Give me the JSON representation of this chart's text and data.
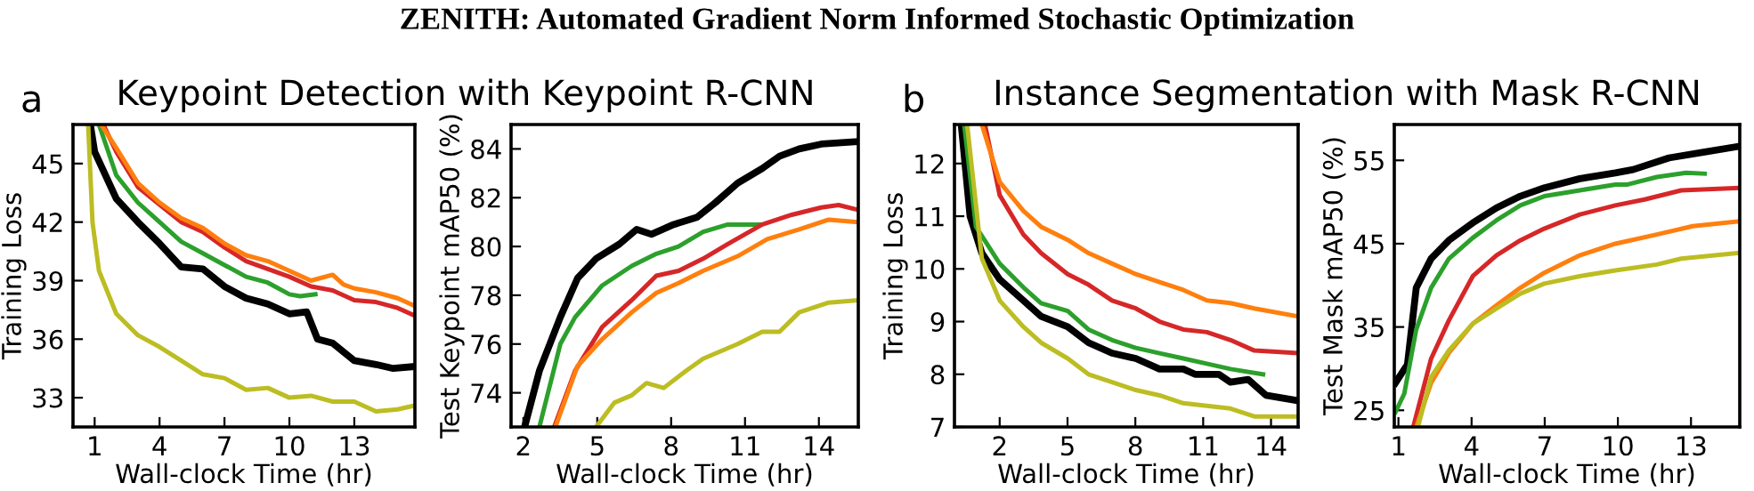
{
  "chart_data": [
    {
      "type": "line",
      "title": "Keypoint Detection with Keypoint R-CNN",
      "xlabel": "Wall-clock Time (hr)",
      "ylabel": "Training Loss",
      "annotations": [
        "ZENITH: Automated Gradient Norm Informed Stochastic Optimization",
        "a"
      ],
      "xlim": [
        0,
        15.8
      ],
      "ylim": [
        31.5,
        47
      ],
      "xticks": [
        1,
        4,
        7,
        10,
        13
      ],
      "yticks": [
        33,
        36,
        39,
        42,
        45
      ],
      "grid": false,
      "legend": false,
      "series": [
        {
          "color": "#000000",
          "x": [
            0.8,
            1,
            2,
            3,
            4,
            5,
            6,
            7,
            8,
            9,
            10,
            10.8,
            11.3,
            12,
            13,
            14,
            14.8,
            15.8
          ],
          "values": [
            47,
            45.6,
            43.2,
            42.0,
            40.9,
            39.7,
            39.6,
            38.7,
            38.1,
            37.8,
            37.3,
            37.4,
            36.0,
            35.8,
            34.9,
            34.7,
            34.5,
            34.6
          ]
        },
        {
          "color": "#2ca02c",
          "x": [
            1.2,
            2,
            3,
            4,
            5,
            6,
            7,
            8,
            9,
            10,
            10.5,
            11.2
          ],
          "values": [
            47,
            44.4,
            43.0,
            42.0,
            41.0,
            40.4,
            39.8,
            39.2,
            38.9,
            38.3,
            38.2,
            38.3
          ]
        },
        {
          "color": "#d62728",
          "x": [
            1.4,
            2,
            3,
            4,
            5,
            6,
            7,
            8,
            9,
            10,
            11,
            12,
            13,
            14,
            15,
            15.8
          ],
          "values": [
            47,
            45.6,
            43.8,
            42.9,
            42.0,
            41.5,
            40.7,
            40.0,
            39.6,
            39.2,
            38.7,
            38.5,
            38.0,
            37.9,
            37.6,
            37.2
          ]
        },
        {
          "color": "#ff7f0e",
          "x": [
            1.3,
            2,
            3,
            4,
            5,
            6,
            7,
            8,
            9,
            10,
            11,
            12,
            12.5,
            13,
            14,
            15,
            15.8
          ],
          "values": [
            47,
            45.8,
            44.0,
            43.0,
            42.2,
            41.7,
            40.9,
            40.3,
            40.0,
            39.5,
            39.0,
            39.3,
            38.8,
            38.6,
            38.4,
            38.1,
            37.7
          ]
        },
        {
          "color": "#bcbd22",
          "x": [
            0.7,
            0.9,
            1.2,
            2,
            3,
            4,
            5,
            6,
            7,
            8,
            9,
            10,
            11,
            12,
            13,
            14,
            15,
            15.8
          ],
          "values": [
            47,
            42,
            39.5,
            37.3,
            36.2,
            35.6,
            34.9,
            34.2,
            34.0,
            33.4,
            33.5,
            33.0,
            33.1,
            32.8,
            32.8,
            32.3,
            32.4,
            32.6
          ]
        }
      ]
    },
    {
      "type": "line",
      "xlabel": "Wall-clock Time (hr)",
      "ylabel": "Test Keypoint mAP50 (%)",
      "xlim": [
        1.5,
        15.6
      ],
      "ylim": [
        72.6,
        85
      ],
      "xticks": [
        2,
        5,
        8,
        11,
        14
      ],
      "yticks": [
        74,
        76,
        78,
        80,
        82,
        84
      ],
      "grid": false,
      "legend": false,
      "series": [
        {
          "color": "#000000",
          "x": [
            2.05,
            2.65,
            3.5,
            4.2,
            4.95,
            5.9,
            6.6,
            7.2,
            8.1,
            9.05,
            9.8,
            10.7,
            11.7,
            12.4,
            13.2,
            14.1,
            15.6
          ],
          "values": [
            72.6,
            74.9,
            77.1,
            78.7,
            79.5,
            80.1,
            80.7,
            80.5,
            80.9,
            81.2,
            81.8,
            82.6,
            83.2,
            83.7,
            84.0,
            84.2,
            84.3
          ]
        },
        {
          "color": "#2ca02c",
          "x": [
            2.65,
            3.5,
            4.1,
            5.2,
            6.4,
            7.4,
            8.3,
            9.3,
            10.3,
            11.6
          ],
          "values": [
            72.6,
            76.0,
            77.1,
            78.4,
            79.2,
            79.7,
            80.0,
            80.6,
            80.9,
            80.9
          ]
        },
        {
          "color": "#d62728",
          "x": [
            3.25,
            4.1,
            5.2,
            6.4,
            7.4,
            8.3,
            9.3,
            10.3,
            11.7,
            12.9,
            14.1,
            14.8,
            15.6
          ],
          "values": [
            72.6,
            74.9,
            76.7,
            77.8,
            78.8,
            79.0,
            79.5,
            80.1,
            80.9,
            81.3,
            81.6,
            81.7,
            81.5
          ]
        },
        {
          "color": "#ff7f0e",
          "x": [
            3.3,
            4.2,
            5.2,
            6.4,
            7.4,
            8.3,
            9.3,
            10.7,
            11.9,
            13.2,
            14.4,
            15.6
          ],
          "values": [
            72.6,
            75.1,
            76.2,
            77.3,
            78.1,
            78.5,
            79.0,
            79.6,
            80.3,
            80.7,
            81.1,
            81.0
          ]
        },
        {
          "color": "#bcbd22",
          "x": [
            4.95,
            5.7,
            6.4,
            7.0,
            7.7,
            8.6,
            9.3,
            10.7,
            11.7,
            12.4,
            13.2,
            14.4,
            15.6
          ],
          "values": [
            72.6,
            73.6,
            73.9,
            74.4,
            74.2,
            74.9,
            75.4,
            76.0,
            76.5,
            76.5,
            77.3,
            77.7,
            77.8
          ]
        }
      ]
    },
    {
      "type": "line",
      "title": "Instance Segmentation with Mask R-CNN",
      "xlabel": "Wall-clock Time (hr)",
      "ylabel": "Training Loss",
      "annotations": [
        "b"
      ],
      "xlim": [
        0,
        15.2
      ],
      "ylim": [
        7,
        12.74
      ],
      "xticks": [
        2,
        5,
        8,
        11,
        14
      ],
      "yticks": [
        7,
        8,
        9,
        10,
        11,
        12
      ],
      "grid": false,
      "legend": false,
      "series": [
        {
          "color": "#000000",
          "x": [
            0.3,
            0.69,
            1.21,
            2,
            3.05,
            3.83,
            5.01,
            5.93,
            6.97,
            8.02,
            9.07,
            10.12,
            10.64,
            11.69,
            12.21,
            12.99,
            13.78,
            15.17
          ],
          "values": [
            12.74,
            11.0,
            10.3,
            9.8,
            9.4,
            9.1,
            8.9,
            8.6,
            8.4,
            8.3,
            8.1,
            8.1,
            8.0,
            8.0,
            7.85,
            7.9,
            7.6,
            7.5
          ]
        },
        {
          "color": "#2ca02c",
          "x": [
            0.43,
            0.95,
            2,
            3.05,
            3.83,
            5.01,
            5.93,
            6.97,
            8.02,
            9.07,
            10.12,
            11.16,
            12.21,
            13.65
          ],
          "values": [
            12.74,
            10.8,
            10.1,
            9.65,
            9.35,
            9.2,
            8.85,
            8.65,
            8.5,
            8.4,
            8.3,
            8.2,
            8.1,
            8.0
          ]
        },
        {
          "color": "#d62728",
          "x": [
            1.35,
            2,
            3.05,
            3.83,
            5.01,
            5.93,
            6.97,
            8.02,
            9.07,
            10.12,
            11.16,
            12.21,
            13.26,
            15.17
          ],
          "values": [
            12.74,
            11.4,
            10.65,
            10.3,
            9.9,
            9.7,
            9.4,
            9.25,
            9.0,
            8.85,
            8.8,
            8.65,
            8.45,
            8.4
          ]
        },
        {
          "color": "#ff7f0e",
          "x": [
            1.21,
            2,
            3.05,
            3.83,
            5.01,
            5.93,
            6.97,
            8.02,
            9.07,
            10.12,
            11.16,
            12.21,
            13.26,
            15.17
          ],
          "values": [
            12.74,
            11.65,
            11.1,
            10.8,
            10.55,
            10.3,
            10.1,
            9.9,
            9.75,
            9.6,
            9.4,
            9.35,
            9.25,
            9.1
          ]
        },
        {
          "color": "#bcbd22",
          "x": [
            0.56,
            1.21,
            2,
            3.05,
            3.83,
            5.01,
            5.93,
            6.97,
            8.02,
            9.07,
            10.12,
            11.16,
            12.21,
            13.26,
            15.17
          ],
          "values": [
            12.74,
            10.2,
            9.4,
            8.9,
            8.6,
            8.3,
            8.0,
            7.85,
            7.7,
            7.6,
            7.45,
            7.4,
            7.35,
            7.2,
            7.2
          ]
        }
      ]
    },
    {
      "type": "line",
      "xlabel": "Wall-clock Time (hr)",
      "ylabel": "Test Mask mAP50 (%)",
      "xlim": [
        0.83,
        15
      ],
      "ylim": [
        23,
        59.3
      ],
      "xticks": [
        1,
        4,
        7,
        10,
        13
      ],
      "yticks": [
        25,
        35,
        45,
        55
      ],
      "grid": false,
      "legend": false,
      "series": [
        {
          "color": "#000000",
          "x": [
            0.88,
            1.37,
            1.73,
            2.34,
            3.07,
            4.05,
            5.02,
            6.0,
            6.98,
            8.44,
            9.9,
            10.63,
            12.1,
            13.56,
            15.0
          ],
          "values": [
            28.3,
            30.5,
            39.7,
            43.2,
            45.4,
            47.5,
            49.3,
            50.7,
            51.7,
            52.8,
            53.5,
            53.9,
            55.3,
            56.0,
            56.7
          ]
        },
        {
          "color": "#2ca02c",
          "x": [
            0.88,
            1.24,
            1.73,
            2.34,
            3.07,
            4.05,
            5.02,
            6.0,
            6.98,
            8.44,
            9.9,
            10.4,
            11.6,
            12.8,
            13.56
          ],
          "values": [
            24.8,
            27.0,
            34.7,
            39.7,
            43.2,
            45.7,
            47.8,
            49.6,
            50.7,
            51.4,
            52.1,
            52.1,
            53.0,
            53.5,
            53.4
          ]
        },
        {
          "color": "#d62728",
          "x": [
            1.61,
            2.34,
            3.07,
            4.05,
            5.02,
            6.0,
            6.98,
            8.44,
            9.9,
            11.1,
            12.6,
            15.0
          ],
          "values": [
            23.0,
            31.2,
            35.8,
            41.1,
            43.6,
            45.4,
            46.8,
            48.5,
            49.6,
            50.3,
            51.4,
            51.7
          ]
        },
        {
          "color": "#ff7f0e",
          "x": [
            1.73,
            2.34,
            3.07,
            4.05,
            5.02,
            6.0,
            6.98,
            8.44,
            9.9,
            11.6,
            13.07,
            15.0
          ],
          "values": [
            23.0,
            28.3,
            31.9,
            35.4,
            37.6,
            39.7,
            41.5,
            43.6,
            45.0,
            46.1,
            47.1,
            47.7
          ]
        },
        {
          "color": "#bcbd22",
          "x": [
            1.8,
            2.34,
            3.07,
            4.05,
            5.02,
            6.0,
            6.98,
            8.44,
            9.9,
            11.6,
            12.6,
            15.0
          ],
          "values": [
            23.0,
            29.0,
            32.2,
            35.4,
            37.2,
            39.0,
            40.2,
            41.1,
            41.8,
            42.5,
            43.2,
            43.9
          ]
        }
      ]
    }
  ]
}
